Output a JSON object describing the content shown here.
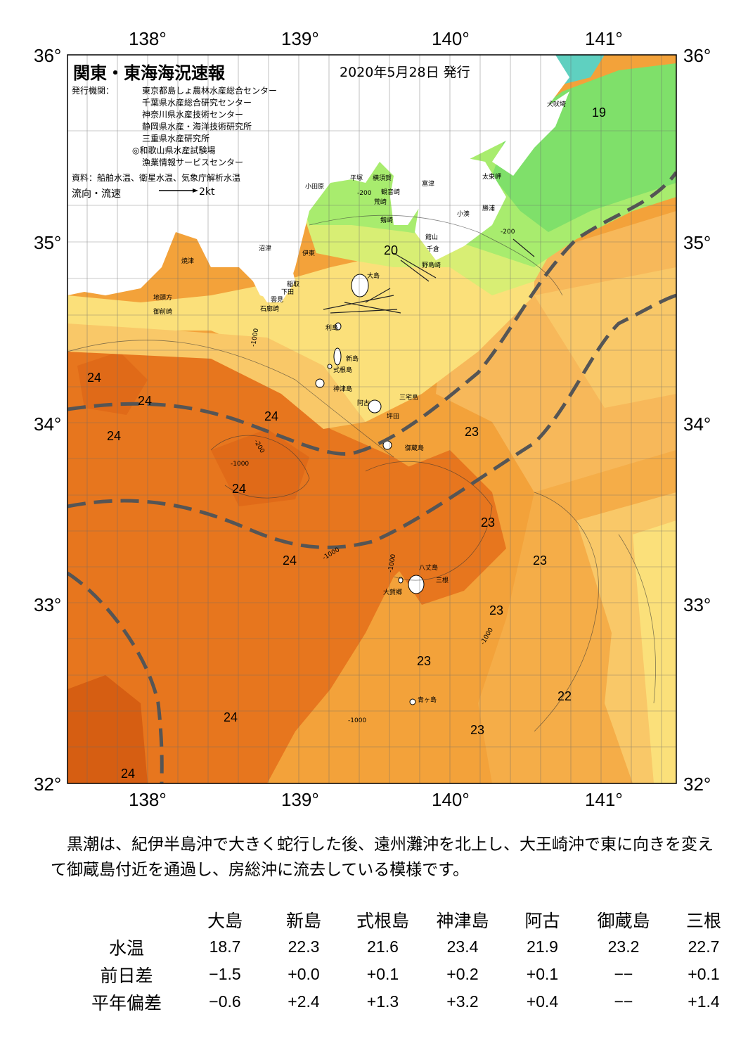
{
  "header": {
    "title": "関東・東海海況速報",
    "date": "2020年5月28日 発行",
    "publisher_label": "発行機関：",
    "publishers": [
      "東京都島しょ農林水産総合センター",
      "千葉県水産総合研究センター",
      "神奈川県水産技術センター",
      "静岡県水産・海洋技術研究所",
      "三重県水産研究所",
      "◎和歌山県水産試験場",
      "漁業情報サービスセンター"
    ],
    "source": "資料：船舶水温、衛星水温、気象庁解析水温",
    "flow_label": "流向・流速",
    "flow_scale": "2kt"
  },
  "axes": {
    "lon_labels": [
      "138°",
      "139°",
      "140°",
      "141°"
    ],
    "lat_labels": [
      "36°",
      "35°",
      "34°",
      "33°",
      "32°"
    ]
  },
  "place_names": [
    "犬吠埼",
    "太東岬",
    "勝浦",
    "小湊",
    "富津",
    "横須賀",
    "平塚",
    "小田原",
    "観音崎",
    "荒崎",
    "剱崎",
    "館山",
    "千倉",
    "野島崎",
    "沼津",
    "伊東",
    "焼津",
    "稲取",
    "下田",
    "雲見",
    "石廊崎",
    "地頭方",
    "御前崎",
    "大島",
    "利島",
    "新島",
    "式根島",
    "神津島",
    "三宅島",
    "阿古",
    "坪田",
    "御蔵島",
    "八丈島",
    "三根",
    "大賀郷",
    "青ヶ島"
  ],
  "temperature_labels": [
    "19",
    "20",
    "24",
    "24",
    "24",
    "24",
    "24",
    "24",
    "24",
    "24",
    "23",
    "23",
    "23",
    "23",
    "23",
    "23",
    "22"
  ],
  "depth_labels": [
    "-1000",
    "-200"
  ],
  "colors": {
    "t18": "#5fd0c0",
    "t19": "#7fe06a",
    "t20": "#a8ec6e",
    "t21": "#d8ee74",
    "t22": "#fbe07a",
    "t22_5": "#f9c868",
    "t23": "#f3a23a",
    "t23_5": "#ee8d2a",
    "t24": "#e7761e",
    "t24_5": "#d65e12",
    "kuroshio_axis": "#555555"
  },
  "description": "黒潮は、紀伊半島沖で大きく蛇行した後、遠州灘沖を北上し、大王崎沖で東に向きを変えて御蔵島付近を通過し、房総沖に流去している模様です。",
  "observations": {
    "stations": [
      "大島",
      "新島",
      "式根島",
      "神津島",
      "阿古",
      "御蔵島",
      "三根"
    ],
    "rows": [
      {
        "label": "水温",
        "values": [
          "18.7",
          "22.3",
          "21.6",
          "23.4",
          "21.9",
          "23.2",
          "22.7"
        ]
      },
      {
        "label": "前日差",
        "values": [
          "−1.5",
          "+0.0",
          "+0.1",
          "+0.2",
          "+0.1",
          "−−",
          "+0.1"
        ]
      },
      {
        "label": "平年偏差",
        "values": [
          "−0.6",
          "+2.4",
          "+1.3",
          "+3.2",
          "+0.4",
          "−−",
          "+1.4"
        ]
      }
    ]
  }
}
